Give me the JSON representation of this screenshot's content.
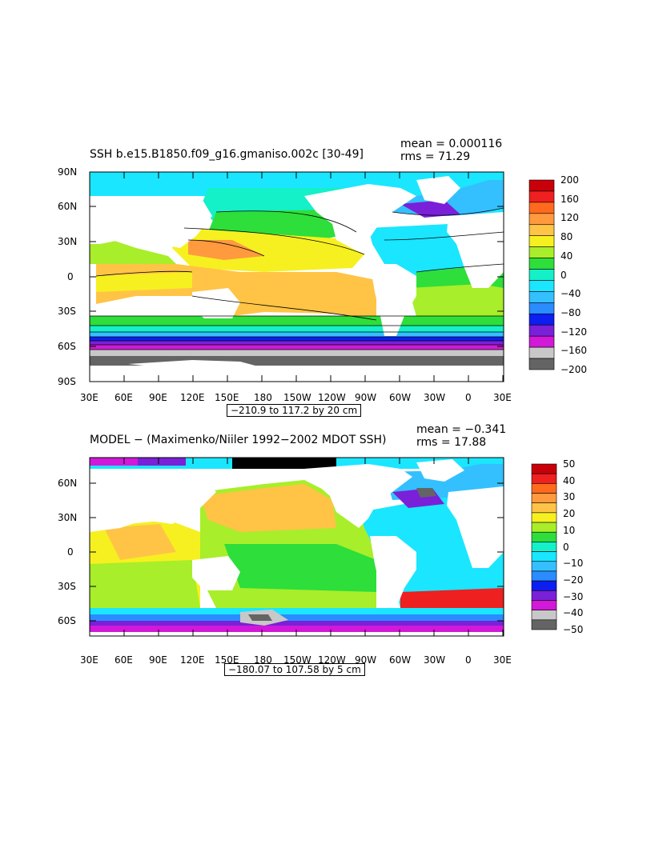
{
  "panels": [
    {
      "title": "SSH b.e15.B1850.f09_g16.gmaniso.002c  [30-49]",
      "mean": "mean = 0.000116",
      "rms": "rms = 71.29",
      "range": "−210.9 to 117.2 by 20 cm",
      "lat_labels": [
        "90N",
        "60N",
        "30N",
        "0",
        "30S",
        "60S",
        "90S"
      ],
      "lon_labels": [
        "30E",
        "60E",
        "90E",
        "120E",
        "150E",
        "180",
        "150W",
        "120W",
        "90W",
        "60W",
        "30W",
        "0",
        "30E"
      ],
      "colorbar_labels": [
        "200",
        "160",
        "120",
        "80",
        "40",
        "0",
        "−40",
        "−80",
        "−120",
        "−160",
        "−200"
      ],
      "colorbar_colors": [
        "#c8000a",
        "#ee2020",
        "#ff6a1e",
        "#ff9a3e",
        "#ffc446",
        "#f6f020",
        "#a8ee2a",
        "#2ede3a",
        "#14f0c8",
        "#1ae6ff",
        "#34c0ff",
        "#2a8cff",
        "#0c1ef0",
        "#7a20d8",
        "#d218d8",
        "#c8c8c8",
        "#646464"
      ]
    },
    {
      "title": "MODEL − (Maximenko/Niiler 1992−2002 MDOT SSH)",
      "mean": "mean = −0.341",
      "rms": "rms = 17.88",
      "range": "−180.07 to 107.58 by 5 cm",
      "lat_labels": [
        "60N",
        "30N",
        "0",
        "30S",
        "60S"
      ],
      "lon_labels": [
        "30E",
        "60E",
        "90E",
        "120E",
        "150E",
        "180",
        "150W",
        "120W",
        "90W",
        "60W",
        "30W",
        "0",
        "30E"
      ],
      "colorbar_labels": [
        "50",
        "40",
        "30",
        "20",
        "10",
        "0",
        "−10",
        "−20",
        "−30",
        "−40",
        "−50"
      ],
      "colorbar_colors": [
        "#c8000a",
        "#ee2020",
        "#ff6a1e",
        "#ff9a3e",
        "#ffc446",
        "#f6f020",
        "#a8ee2a",
        "#2ede3a",
        "#14f0c8",
        "#1ae6ff",
        "#34c0ff",
        "#2a8cff",
        "#0c1ef0",
        "#7a20d8",
        "#d218d8",
        "#c8c8c8",
        "#646464"
      ]
    }
  ]
}
